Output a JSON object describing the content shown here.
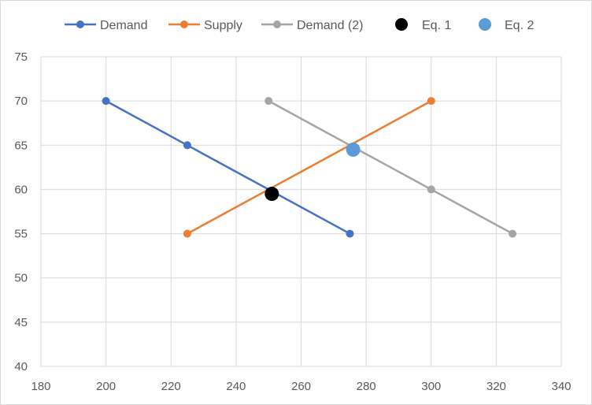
{
  "chart_data": {
    "type": "scatter",
    "title": "",
    "xlabel": "",
    "ylabel": "",
    "xlim": [
      180,
      340
    ],
    "ylim": [
      40,
      75
    ],
    "xticks": [
      180,
      200,
      220,
      240,
      260,
      280,
      300,
      320,
      340
    ],
    "yticks": [
      40,
      45,
      50,
      55,
      60,
      65,
      70,
      75
    ],
    "grid": true,
    "legend_position": "top",
    "series": [
      {
        "name": "Demand",
        "color": "#4472c4",
        "mode": "lines+markers",
        "marker_size": "small",
        "points": [
          [
            200,
            70
          ],
          [
            225,
            65
          ],
          [
            275,
            55
          ]
        ]
      },
      {
        "name": "Supply",
        "color": "#ed7d31",
        "mode": "lines+markers",
        "marker_size": "small",
        "points": [
          [
            225,
            55
          ],
          [
            300,
            70
          ]
        ]
      },
      {
        "name": "Demand (2)",
        "color": "#a5a5a5",
        "mode": "lines+markers",
        "marker_size": "small",
        "points": [
          [
            250,
            70
          ],
          [
            300,
            60
          ],
          [
            325,
            55
          ]
        ]
      },
      {
        "name": "Eq. 1",
        "color": "#000000",
        "mode": "markers",
        "marker_size": "large",
        "points": [
          [
            251,
            59.5
          ]
        ]
      },
      {
        "name": "Eq. 2",
        "color": "#5b9bd5",
        "mode": "markers",
        "marker_size": "large",
        "points": [
          [
            276,
            64.5
          ]
        ]
      }
    ]
  }
}
